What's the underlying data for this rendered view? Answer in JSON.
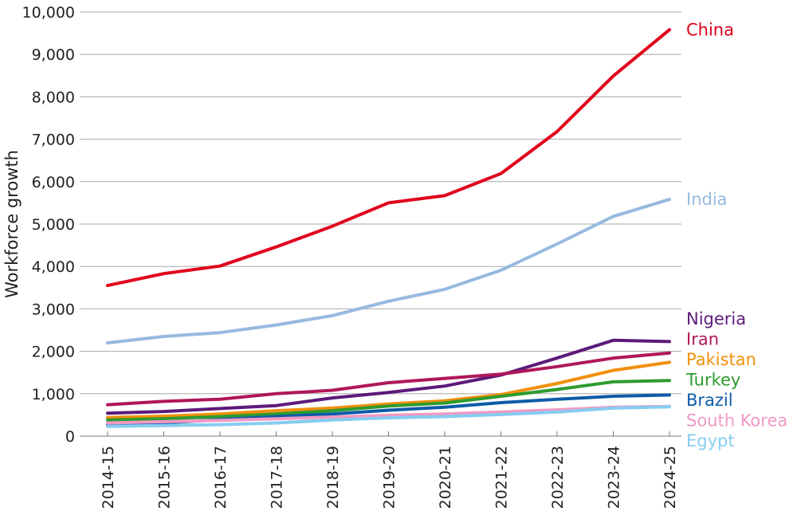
{
  "chart_data": {
    "type": "line",
    "title": "",
    "xlabel": "",
    "ylabel": "Workforce growth",
    "ylim": [
      0,
      10000
    ],
    "yticks": [
      0,
      1000,
      2000,
      3000,
      4000,
      5000,
      6000,
      7000,
      8000,
      9000,
      10000
    ],
    "ytick_labels": [
      "0",
      "1,000",
      "2,000",
      "3,000",
      "4,000",
      "5,000",
      "6,000",
      "7,000",
      "8,000",
      "9,000",
      "10,000"
    ],
    "grid": "horizontal",
    "legend": "direct labels at right end of lines",
    "categories": [
      "2014-15",
      "2015-16",
      "2016-17",
      "2017-18",
      "2018-19",
      "2019-20",
      "2020-21",
      "2021-22",
      "2022-23",
      "2023-24",
      "2024-25"
    ],
    "series": [
      {
        "name": "China",
        "color": "#e0001b",
        "values": [
          3550,
          3830,
          4010,
          4460,
          4950,
          5500,
          5670,
          6190,
          7180,
          8490,
          9580
        ]
      },
      {
        "name": "India",
        "color": "#97b9e0",
        "values": [
          2200,
          2350,
          2440,
          2620,
          2840,
          3180,
          3460,
          3910,
          4530,
          5180,
          5580
        ]
      },
      {
        "name": "Nigeria",
        "color": "#5c1a7a",
        "values": [
          540,
          580,
          650,
          720,
          900,
          1030,
          1180,
          1440,
          1840,
          2260,
          2230
        ]
      },
      {
        "name": "Iran",
        "color": "#b0175a",
        "values": [
          740,
          820,
          870,
          1000,
          1080,
          1260,
          1360,
          1460,
          1640,
          1840,
          1960
        ]
      },
      {
        "name": "Pakistan",
        "color": "#f0900d",
        "values": [
          440,
          470,
          520,
          600,
          660,
          760,
          830,
          980,
          1240,
          1550,
          1740
        ]
      },
      {
        "name": "Turkey",
        "color": "#2e9b2e",
        "values": [
          380,
          410,
          460,
          520,
          600,
          710,
          780,
          940,
          1100,
          1280,
          1310
        ]
      },
      {
        "name": "Brazil",
        "color": "#0d5ba8",
        "values": [
          280,
          310,
          390,
          460,
          520,
          610,
          680,
          790,
          870,
          940,
          970
        ]
      },
      {
        "name": "South Korea",
        "color": "#f199c4",
        "values": [
          310,
          340,
          370,
          410,
          450,
          490,
          520,
          570,
          620,
          680,
          700
        ]
      },
      {
        "name": "Egypt",
        "color": "#86cdf0",
        "values": [
          230,
          250,
          270,
          310,
          380,
          430,
          460,
          510,
          570,
          660,
          690
        ]
      }
    ]
  }
}
